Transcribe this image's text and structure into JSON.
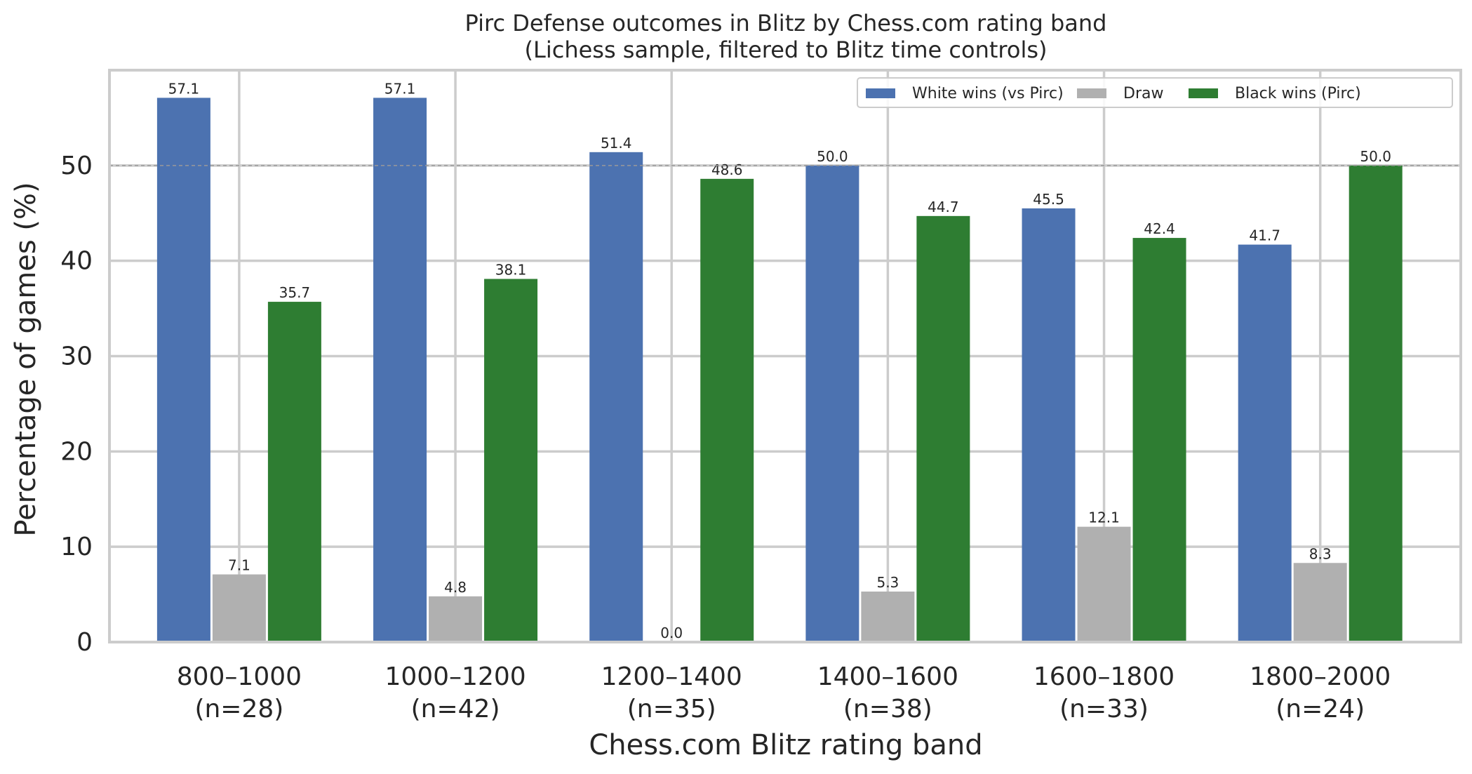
{
  "chart_data": {
    "type": "bar",
    "title": "Pirc Defense outcomes in Blitz by Chess.com rating band",
    "subtitle": "(Lichess sample, filtered to Blitz time controls)",
    "xlabel": "Chess.com Blitz rating band",
    "ylabel": "Percentage of games (%)",
    "categories": [
      "800–1000",
      "1000–1200",
      "1200–1400",
      "1400–1600",
      "1600–1800",
      "1800–2000"
    ],
    "category_counts": [
      "(n=28)",
      "(n=42)",
      "(n=35)",
      "(n=38)",
      "(n=33)",
      "(n=24)"
    ],
    "series": [
      {
        "name": "White wins (vs Pirc)",
        "color": "#4c72b0",
        "values": [
          57.1,
          57.1,
          51.4,
          50.0,
          45.5,
          41.7
        ],
        "labels": [
          "57.1",
          "57.1",
          "51.4",
          "50.0",
          "45.5",
          "41.7"
        ]
      },
      {
        "name": "Draw",
        "color": "#b0b0b0",
        "values": [
          7.1,
          4.8,
          0.0,
          5.3,
          12.1,
          8.3
        ],
        "labels": [
          "7.1",
          "4.8",
          "0.0",
          "5.3",
          "12.1",
          "8.3"
        ]
      },
      {
        "name": "Black wins (Pirc)",
        "color": "#2e7d32",
        "values": [
          35.7,
          38.1,
          48.6,
          44.7,
          42.4,
          50.0
        ],
        "labels": [
          "35.7",
          "38.1",
          "48.6",
          "44.7",
          "42.4",
          "50.0"
        ]
      }
    ],
    "ylim": [
      0,
      60
    ],
    "yticks": [
      0,
      10,
      20,
      30,
      40,
      50
    ],
    "reference_line": 50,
    "grid": true,
    "legend_position": "top-right"
  }
}
